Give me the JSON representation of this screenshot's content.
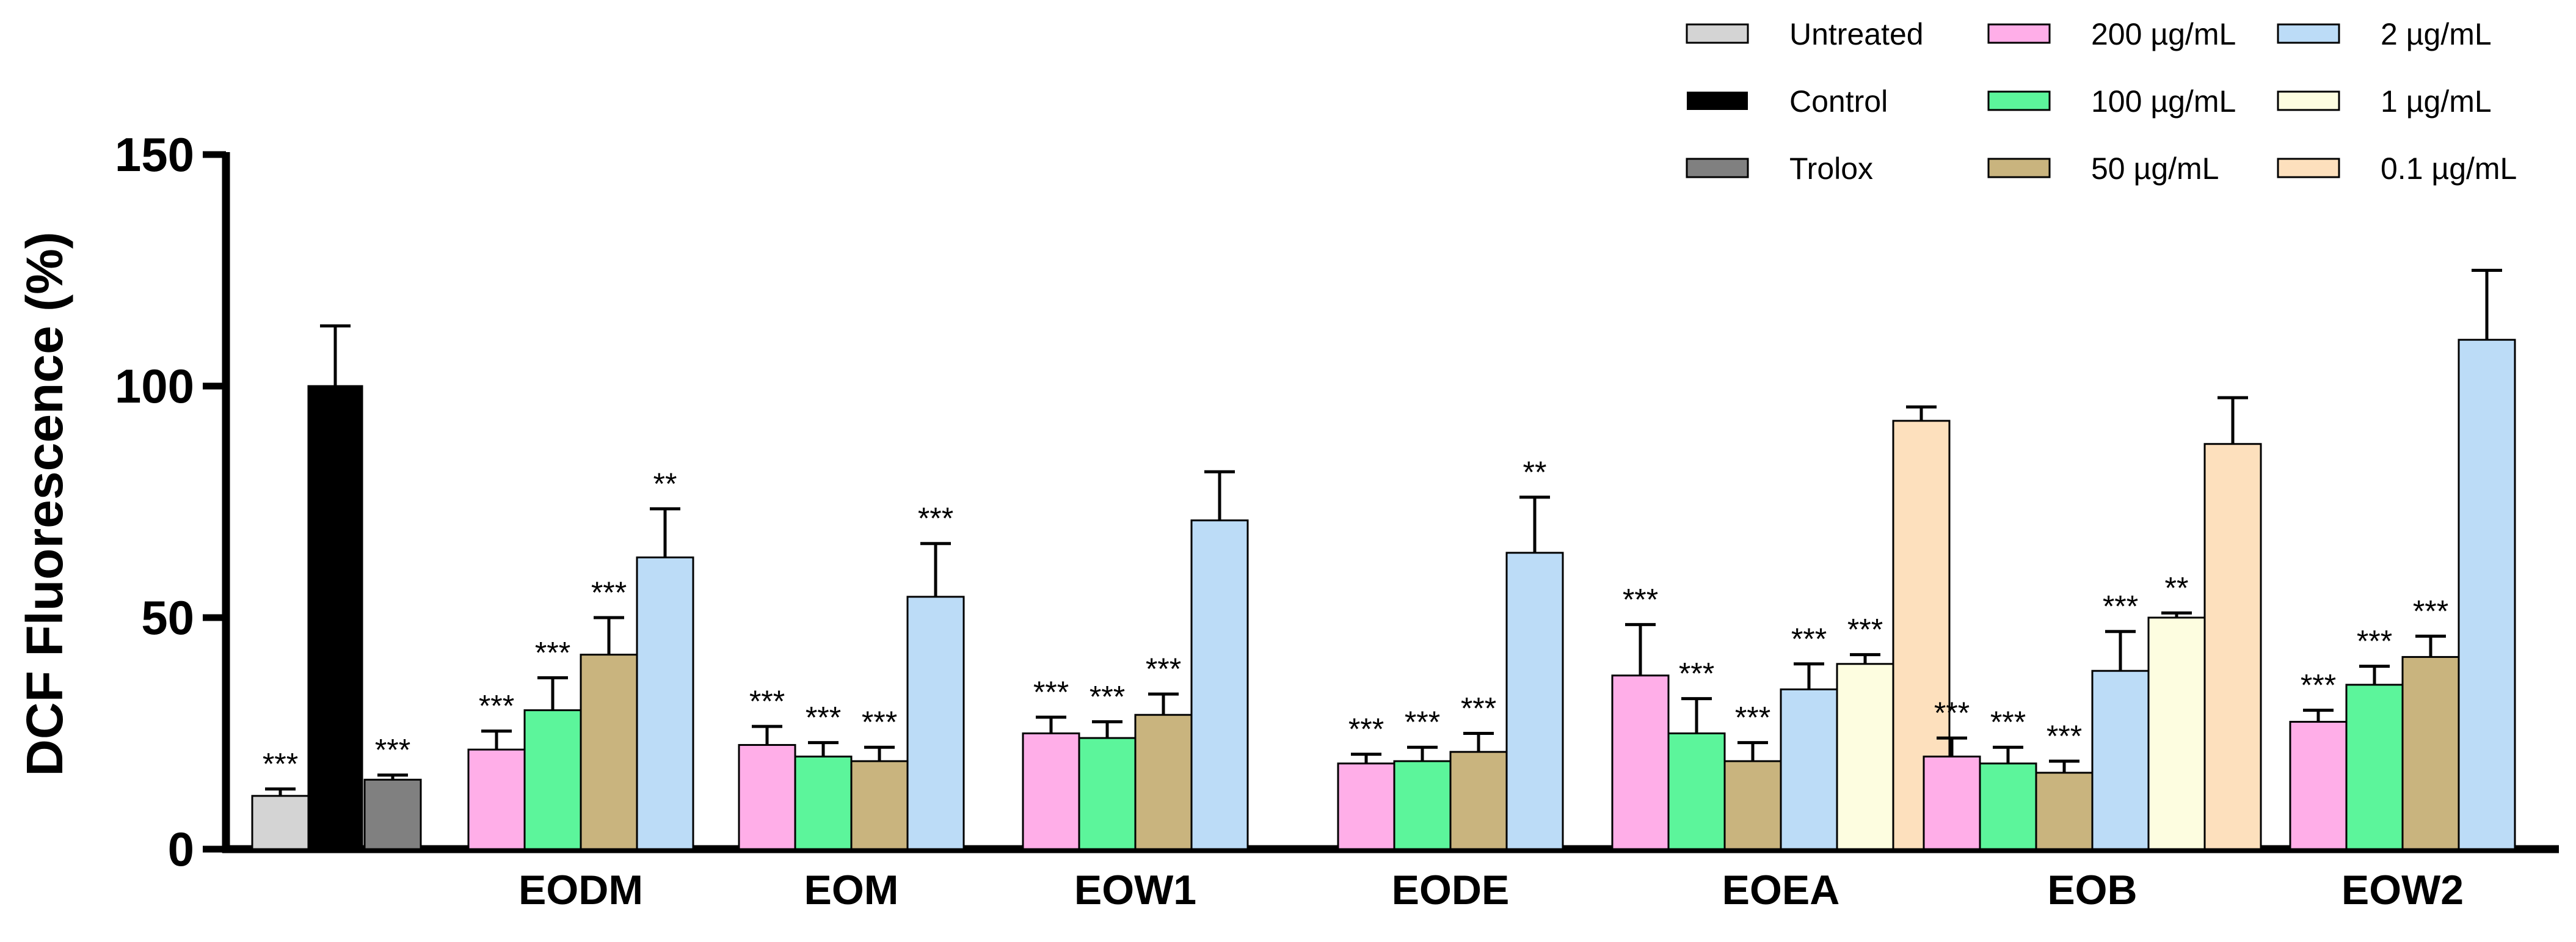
{
  "chart_data": {
    "type": "bar",
    "ylabel": "DCF Fluorescence (%)",
    "xlabel": "",
    "ylim": [
      0,
      150
    ],
    "yticks": [
      0,
      50,
      100,
      150
    ],
    "colors": {
      "Untreated": "#d4d4d4",
      "Control": "#000000",
      "Trolox": "#808080",
      "200 µg/mL": "#ffaee8",
      "100 µg/mL": "#5cf59b",
      "50 µg/mL": "#c9b47e",
      "2 µg/mL": "#bcdcf7",
      "1 µg/mL": "#fdfde0",
      "0.1 µg/mL": "#fde0bd"
    },
    "legend": [
      {
        "label": "Untreated",
        "color_key": "Untreated"
      },
      {
        "label": "Control",
        "color_key": "Control"
      },
      {
        "label": "Trolox",
        "color_key": "Trolox"
      },
      {
        "label": "200 µg/mL",
        "color_key": "200 µg/mL"
      },
      {
        "label": "100 µg/mL",
        "color_key": "100 µg/mL"
      },
      {
        "label": "50 µg/mL",
        "color_key": "50 µg/mL"
      },
      {
        "label": "2 µg/mL",
        "color_key": "2 µg/mL"
      },
      {
        "label": "1 µg/mL",
        "color_key": "1 µg/mL"
      },
      {
        "label": "0.1 µg/mL",
        "color_key": "0.1 µg/mL"
      }
    ],
    "groups": [
      {
        "label": "",
        "bars": [
          {
            "series": "Untreated",
            "value": 11.5,
            "error": 1.5,
            "sig": "***"
          },
          {
            "series": "Control",
            "value": 100,
            "error": 13,
            "sig": ""
          },
          {
            "series": "Trolox",
            "value": 15,
            "error": 1,
            "sig": "***"
          }
        ]
      },
      {
        "label": "EODM",
        "bars": [
          {
            "series": "200 µg/mL",
            "value": 21.5,
            "error": 4,
            "sig": "***"
          },
          {
            "series": "100 µg/mL",
            "value": 30,
            "error": 7,
            "sig": "***"
          },
          {
            "series": "50 µg/mL",
            "value": 42,
            "error": 8,
            "sig": "***"
          },
          {
            "series": "2 µg/mL",
            "value": 63,
            "error": 10.5,
            "sig": "**"
          }
        ]
      },
      {
        "label": "EOM",
        "bars": [
          {
            "series": "200 µg/mL",
            "value": 22.5,
            "error": 4,
            "sig": "***"
          },
          {
            "series": "100 µg/mL",
            "value": 20,
            "error": 3,
            "sig": "***"
          },
          {
            "series": "50 µg/mL",
            "value": 19,
            "error": 3,
            "sig": "***"
          },
          {
            "series": "2 µg/mL",
            "value": 54.5,
            "error": 11.5,
            "sig": "***"
          }
        ]
      },
      {
        "label": "EOW1",
        "bars": [
          {
            "series": "200 µg/mL",
            "value": 25,
            "error": 3.5,
            "sig": "***"
          },
          {
            "series": "100 µg/mL",
            "value": 24,
            "error": 3.5,
            "sig": "***"
          },
          {
            "series": "50 µg/mL",
            "value": 29,
            "error": 4.5,
            "sig": "***"
          },
          {
            "series": "2 µg/mL",
            "value": 71,
            "error": 10.5,
            "sig": ""
          }
        ]
      },
      {
        "label": "EODE",
        "bars": [
          {
            "series": "200 µg/mL",
            "value": 18.5,
            "error": 2,
            "sig": "***"
          },
          {
            "series": "100 µg/mL",
            "value": 19,
            "error": 3,
            "sig": "***"
          },
          {
            "series": "50 µg/mL",
            "value": 21,
            "error": 4,
            "sig": "***"
          },
          {
            "series": "2 µg/mL",
            "value": 64,
            "error": 12,
            "sig": "**"
          }
        ]
      },
      {
        "label": "EOEA",
        "bars": [
          {
            "series": "200 µg/mL",
            "value": 37.5,
            "error": 11,
            "sig": "***"
          },
          {
            "series": "100 µg/mL",
            "value": 25,
            "error": 7.5,
            "sig": "***"
          },
          {
            "series": "50 µg/mL",
            "value": 19,
            "error": 4,
            "sig": "***"
          },
          {
            "series": "2 µg/mL",
            "value": 34.5,
            "error": 5.5,
            "sig": "***"
          },
          {
            "series": "1 µg/mL",
            "value": 40,
            "error": 2,
            "sig": "***"
          },
          {
            "series": "0.1 µg/mL",
            "value": 92.5,
            "error": 3,
            "sig": ""
          }
        ]
      },
      {
        "label": "EOB",
        "bars": [
          {
            "series": "200 µg/mL",
            "value": 20,
            "error": 4,
            "sig": "***"
          },
          {
            "series": "100 µg/mL",
            "value": 18.5,
            "error": 3.5,
            "sig": "***"
          },
          {
            "series": "50 µg/mL",
            "value": 16.5,
            "error": 2.5,
            "sig": "***"
          },
          {
            "series": "2 µg/mL",
            "value": 38.5,
            "error": 8.5,
            "sig": "***"
          },
          {
            "series": "1 µg/mL",
            "value": 50,
            "error": 1,
            "sig": "**"
          },
          {
            "series": "0.1 µg/mL",
            "value": 87.5,
            "error": 10,
            "sig": ""
          }
        ]
      },
      {
        "label": "EOW2",
        "bars": [
          {
            "series": "200 µg/mL",
            "value": 27.5,
            "error": 2.5,
            "sig": "***"
          },
          {
            "series": "100 µg/mL",
            "value": 35.5,
            "error": 4,
            "sig": "***"
          },
          {
            "series": "50 µg/mL",
            "value": 41.5,
            "error": 4.5,
            "sig": "***"
          },
          {
            "series": "2 µg/mL",
            "value": 110,
            "error": 15,
            "sig": ""
          }
        ]
      }
    ]
  }
}
